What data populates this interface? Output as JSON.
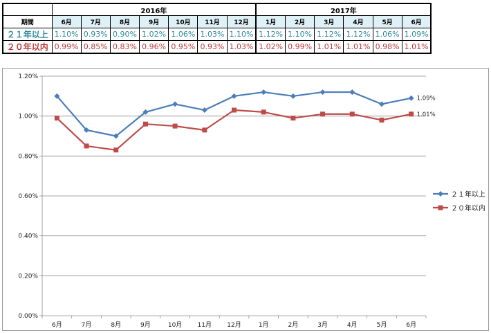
{
  "table": {
    "period_label": "期間",
    "years": [
      {
        "label": "2016年",
        "span": 7
      },
      {
        "label": "2017年",
        "span": 6
      }
    ],
    "months": [
      "6月",
      "7月",
      "8月",
      "9月",
      "10月",
      "11月",
      "12月",
      "1月",
      "2月",
      "3月",
      "4月",
      "5月",
      "6月"
    ],
    "rows": [
      {
        "label": "２１年以上",
        "values": [
          "1.10%",
          "0.93%",
          "0.90%",
          "1.02%",
          "1.06%",
          "1.03%",
          "1.10%",
          "1.12%",
          "1.10%",
          "1.12%",
          "1.12%",
          "1.06%",
          "1.09%"
        ]
      },
      {
        "label": "２０年以内",
        "values": [
          "0.99%",
          "0.85%",
          "0.83%",
          "0.96%",
          "0.95%",
          "0.93%",
          "1.03%",
          "1.02%",
          "0.99%",
          "1.01%",
          "1.01%",
          "0.98%",
          "1.01%"
        ]
      }
    ]
  },
  "chart_data": {
    "type": "line",
    "categories": [
      "6月",
      "7月",
      "8月",
      "9月",
      "10月",
      "11月",
      "12月",
      "1月",
      "2月",
      "3月",
      "4月",
      "5月",
      "6月"
    ],
    "series": [
      {
        "name": "２１年以上",
        "color": "#4a7ebb",
        "marker": "diamond",
        "values": [
          1.1,
          0.93,
          0.9,
          1.02,
          1.06,
          1.03,
          1.1,
          1.12,
          1.1,
          1.12,
          1.12,
          1.06,
          1.09
        ],
        "end_label": "1.09%"
      },
      {
        "name": "２０年以内",
        "color": "#be4b48",
        "marker": "square",
        "values": [
          0.99,
          0.85,
          0.83,
          0.96,
          0.95,
          0.93,
          1.03,
          1.02,
          0.99,
          1.01,
          1.01,
          0.98,
          1.01
        ],
        "end_label": "1.01%"
      }
    ],
    "ylim": [
      0,
      1.2
    ],
    "yticks": [
      0,
      0.2,
      0.4,
      0.6,
      0.8,
      1.0,
      1.2
    ],
    "ytick_labels": [
      "0.00%",
      "0.20%",
      "0.40%",
      "0.60%",
      "0.80%",
      "1.00%",
      "1.20%"
    ],
    "grid": true,
    "legend": "right"
  }
}
